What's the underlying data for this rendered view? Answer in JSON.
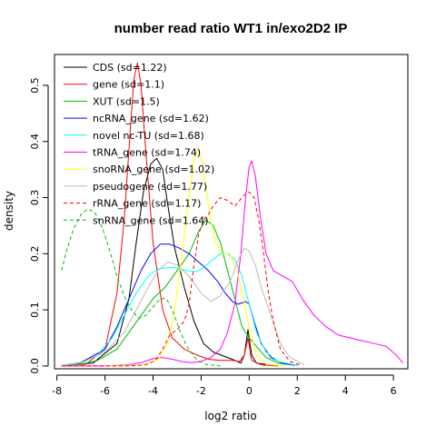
{
  "chart_data": {
    "type": "line",
    "title": "number read ratio WT1 in/exo2D2 IP",
    "xlabel": "log2 ratio",
    "ylabel": "density",
    "xlim": [
      -8.1,
      6.6
    ],
    "ylim": [
      -0.005,
      0.555
    ],
    "xticks": [
      -8,
      -6,
      -4,
      -2,
      0,
      2,
      4,
      6
    ],
    "yticks": [
      0.0,
      0.1,
      0.2,
      0.3,
      0.4,
      0.5
    ],
    "grid": false,
    "legend_position": "top-left",
    "series": [
      {
        "name": "CDS (sd=1.22)",
        "color": "#000000",
        "dash": "solid",
        "points": [
          [
            -7.8,
            0.001
          ],
          [
            -6.5,
            0.005
          ],
          [
            -5.5,
            0.04
          ],
          [
            -5.0,
            0.12
          ],
          [
            -4.7,
            0.22
          ],
          [
            -4.4,
            0.31
          ],
          [
            -4.1,
            0.36
          ],
          [
            -3.85,
            0.37
          ],
          [
            -3.6,
            0.35
          ],
          [
            -3.4,
            0.29
          ],
          [
            -3.1,
            0.21
          ],
          [
            -2.7,
            0.14
          ],
          [
            -2.3,
            0.08
          ],
          [
            -1.9,
            0.04
          ],
          [
            -1.5,
            0.025
          ],
          [
            -1.2,
            0.02
          ],
          [
            -0.9,
            0.015
          ],
          [
            -0.6,
            0.01
          ],
          [
            -0.35,
            0.005
          ],
          [
            -0.2,
            0.02
          ],
          [
            -0.05,
            0.065
          ],
          [
            0.1,
            0.02
          ],
          [
            0.3,
            0.005
          ],
          [
            1.0,
            0.001
          ]
        ]
      },
      {
        "name": "gene (sd=1.1)",
        "color": "#ff0000",
        "dash": "solid",
        "points": [
          [
            -7.8,
            0.001
          ],
          [
            -6.8,
            0.003
          ],
          [
            -6.0,
            0.03
          ],
          [
            -5.5,
            0.13
          ],
          [
            -5.2,
            0.26
          ],
          [
            -4.95,
            0.42
          ],
          [
            -4.8,
            0.51
          ],
          [
            -4.65,
            0.54
          ],
          [
            -4.5,
            0.5
          ],
          [
            -4.3,
            0.38
          ],
          [
            -4.0,
            0.22
          ],
          [
            -3.6,
            0.1
          ],
          [
            -3.2,
            0.05
          ],
          [
            -2.7,
            0.03
          ],
          [
            -2.2,
            0.02
          ],
          [
            -1.7,
            0.012
          ],
          [
            -1.2,
            0.01
          ],
          [
            -0.7,
            0.01
          ],
          [
            -0.4,
            0.008
          ],
          [
            -0.2,
            0.02
          ],
          [
            -0.05,
            0.05
          ],
          [
            0.1,
            0.01
          ],
          [
            0.5,
            0.002
          ],
          [
            1.2,
            0.0
          ]
        ]
      },
      {
        "name": "XUT (sd=1.5)",
        "color": "#00bb00",
        "dash": "solid",
        "points": [
          [
            -7.8,
            0.001
          ],
          [
            -7.0,
            0.003
          ],
          [
            -6.3,
            0.01
          ],
          [
            -5.5,
            0.03
          ],
          [
            -5.0,
            0.06
          ],
          [
            -4.5,
            0.09
          ],
          [
            -4.0,
            0.12
          ],
          [
            -3.5,
            0.14
          ],
          [
            -3.0,
            0.17
          ],
          [
            -2.5,
            0.2
          ],
          [
            -2.1,
            0.24
          ],
          [
            -1.8,
            0.26
          ],
          [
            -1.5,
            0.25
          ],
          [
            -1.2,
            0.22
          ],
          [
            -0.9,
            0.17
          ],
          [
            -0.6,
            0.12
          ],
          [
            -0.3,
            0.07
          ],
          [
            0.0,
            0.05
          ],
          [
            0.3,
            0.035
          ],
          [
            0.7,
            0.015
          ],
          [
            1.2,
            0.005
          ],
          [
            2.0,
            0.001
          ]
        ]
      },
      {
        "name": "ncRNA_gene (sd=1.62)",
        "color": "#0000ff",
        "dash": "solid",
        "points": [
          [
            -7.8,
            0.001
          ],
          [
            -7.0,
            0.006
          ],
          [
            -6.0,
            0.03
          ],
          [
            -5.5,
            0.07
          ],
          [
            -5.0,
            0.12
          ],
          [
            -4.5,
            0.17
          ],
          [
            -4.1,
            0.2
          ],
          [
            -3.7,
            0.217
          ],
          [
            -3.3,
            0.217
          ],
          [
            -2.9,
            0.21
          ],
          [
            -2.5,
            0.2
          ],
          [
            -2.1,
            0.185
          ],
          [
            -1.7,
            0.17
          ],
          [
            -1.3,
            0.15
          ],
          [
            -1.0,
            0.13
          ],
          [
            -0.7,
            0.115
          ],
          [
            -0.45,
            0.11
          ],
          [
            -0.15,
            0.115
          ],
          [
            0.0,
            0.11
          ],
          [
            0.2,
            0.08
          ],
          [
            0.5,
            0.04
          ],
          [
            0.9,
            0.015
          ],
          [
            1.4,
            0.004
          ],
          [
            2.0,
            0.001
          ]
        ]
      },
      {
        "name": "novel nc-TU (sd=1.68)",
        "color": "#00ffff",
        "dash": "solid",
        "points": [
          [
            -7.8,
            0.001
          ],
          [
            -7.0,
            0.005
          ],
          [
            -6.3,
            0.02
          ],
          [
            -5.7,
            0.05
          ],
          [
            -5.2,
            0.09
          ],
          [
            -4.7,
            0.13
          ],
          [
            -4.2,
            0.16
          ],
          [
            -3.8,
            0.173
          ],
          [
            -3.4,
            0.175
          ],
          [
            -3.0,
            0.175
          ],
          [
            -2.6,
            0.17
          ],
          [
            -2.2,
            0.168
          ],
          [
            -1.9,
            0.175
          ],
          [
            -1.5,
            0.19
          ],
          [
            -1.2,
            0.2
          ],
          [
            -0.9,
            0.2
          ],
          [
            -0.6,
            0.19
          ],
          [
            -0.3,
            0.16
          ],
          [
            0.0,
            0.11
          ],
          [
            0.3,
            0.06
          ],
          [
            0.7,
            0.025
          ],
          [
            1.2,
            0.008
          ],
          [
            2.0,
            0.001
          ]
        ]
      },
      {
        "name": "tRNA_gene (sd=1.74)",
        "color": "#ff00ff",
        "dash": "solid",
        "points": [
          [
            -7.8,
            0.0
          ],
          [
            -6.0,
            0.0
          ],
          [
            -5.0,
            0.002
          ],
          [
            -4.5,
            0.006
          ],
          [
            -4.0,
            0.013
          ],
          [
            -3.6,
            0.015
          ],
          [
            -3.2,
            0.012
          ],
          [
            -2.8,
            0.008
          ],
          [
            -2.4,
            0.006
          ],
          [
            -2.0,
            0.008
          ],
          [
            -1.6,
            0.015
          ],
          [
            -1.2,
            0.03
          ],
          [
            -0.9,
            0.06
          ],
          [
            -0.6,
            0.11
          ],
          [
            -0.35,
            0.2
          ],
          [
            -0.15,
            0.3
          ],
          [
            0.0,
            0.355
          ],
          [
            0.1,
            0.365
          ],
          [
            0.25,
            0.34
          ],
          [
            0.45,
            0.27
          ],
          [
            0.7,
            0.2
          ],
          [
            1.0,
            0.17
          ],
          [
            1.4,
            0.16
          ],
          [
            1.8,
            0.15
          ],
          [
            2.2,
            0.12
          ],
          [
            2.7,
            0.09
          ],
          [
            3.2,
            0.07
          ],
          [
            3.7,
            0.055
          ],
          [
            4.2,
            0.05
          ],
          [
            4.7,
            0.045
          ],
          [
            5.2,
            0.04
          ],
          [
            5.7,
            0.035
          ],
          [
            6.1,
            0.02
          ],
          [
            6.4,
            0.005
          ]
        ]
      },
      {
        "name": "snoRNA_gene (sd=1.02)",
        "color": "#ffff00",
        "dash": "solid",
        "points": [
          [
            -6.0,
            0.0
          ],
          [
            -4.5,
            0.001
          ],
          [
            -3.8,
            0.01
          ],
          [
            -3.4,
            0.04
          ],
          [
            -3.1,
            0.1
          ],
          [
            -2.8,
            0.2
          ],
          [
            -2.5,
            0.3
          ],
          [
            -2.3,
            0.37
          ],
          [
            -2.15,
            0.385
          ],
          [
            -2.0,
            0.37
          ],
          [
            -1.8,
            0.32
          ],
          [
            -1.6,
            0.26
          ],
          [
            -1.4,
            0.22
          ],
          [
            -1.1,
            0.2
          ],
          [
            -0.8,
            0.2
          ],
          [
            -0.5,
            0.17
          ],
          [
            -0.25,
            0.12
          ],
          [
            0.0,
            0.07
          ],
          [
            0.3,
            0.02
          ],
          [
            0.7,
            0.003
          ],
          [
            1.5,
            0.0
          ]
        ]
      },
      {
        "name": "pseudogene (sd=1.77)",
        "color": "#bbbbbb",
        "dash": "solid",
        "points": [
          [
            -7.8,
            0.001
          ],
          [
            -7.0,
            0.005
          ],
          [
            -6.0,
            0.025
          ],
          [
            -5.2,
            0.06
          ],
          [
            -4.7,
            0.1
          ],
          [
            -4.2,
            0.14
          ],
          [
            -3.8,
            0.17
          ],
          [
            -3.4,
            0.185
          ],
          [
            -3.0,
            0.18
          ],
          [
            -2.5,
            0.16
          ],
          [
            -2.0,
            0.13
          ],
          [
            -1.6,
            0.115
          ],
          [
            -1.2,
            0.125
          ],
          [
            -0.8,
            0.15
          ],
          [
            -0.45,
            0.19
          ],
          [
            -0.2,
            0.21
          ],
          [
            0.0,
            0.205
          ],
          [
            0.25,
            0.18
          ],
          [
            0.5,
            0.14
          ],
          [
            0.9,
            0.09
          ],
          [
            1.3,
            0.04
          ],
          [
            1.7,
            0.015
          ],
          [
            2.3,
            0.002
          ]
        ]
      },
      {
        "name": "rRNA_gene (sd=1.17)",
        "color": "#ff0000",
        "dash": "dashed",
        "points": [
          [
            -7.8,
            0.0
          ],
          [
            -5.0,
            0.0
          ],
          [
            -4.3,
            0.002
          ],
          [
            -3.9,
            0.01
          ],
          [
            -3.6,
            0.03
          ],
          [
            -3.3,
            0.055
          ],
          [
            -3.0,
            0.065
          ],
          [
            -2.7,
            0.08
          ],
          [
            -2.5,
            0.11
          ],
          [
            -2.3,
            0.18
          ],
          [
            -2.1,
            0.235
          ],
          [
            -1.9,
            0.26
          ],
          [
            -1.7,
            0.27
          ],
          [
            -1.5,
            0.285
          ],
          [
            -1.2,
            0.3
          ],
          [
            -0.9,
            0.295
          ],
          [
            -0.6,
            0.285
          ],
          [
            -0.4,
            0.295
          ],
          [
            -0.2,
            0.305
          ],
          [
            0.0,
            0.31
          ],
          [
            0.2,
            0.3
          ],
          [
            0.4,
            0.26
          ],
          [
            0.6,
            0.2
          ],
          [
            0.8,
            0.13
          ],
          [
            1.0,
            0.08
          ],
          [
            1.3,
            0.03
          ],
          [
            1.7,
            0.008
          ],
          [
            2.2,
            0.001
          ]
        ]
      },
      {
        "name": "snRNA_gene (sd=1.64)",
        "color": "#00bb00",
        "dash": "dashed",
        "points": [
          [
            -7.8,
            0.17
          ],
          [
            -7.6,
            0.205
          ],
          [
            -7.3,
            0.245
          ],
          [
            -7.0,
            0.27
          ],
          [
            -6.7,
            0.28
          ],
          [
            -6.4,
            0.272
          ],
          [
            -6.1,
            0.245
          ],
          [
            -5.8,
            0.205
          ],
          [
            -5.5,
            0.16
          ],
          [
            -5.2,
            0.125
          ],
          [
            -4.9,
            0.1
          ],
          [
            -4.6,
            0.085
          ],
          [
            -4.3,
            0.09
          ],
          [
            -4.0,
            0.105
          ],
          [
            -3.7,
            0.12
          ],
          [
            -3.45,
            0.12
          ],
          [
            -3.2,
            0.1
          ],
          [
            -2.9,
            0.065
          ],
          [
            -2.6,
            0.035
          ],
          [
            -2.2,
            0.012
          ],
          [
            -1.8,
            0.003
          ],
          [
            -1.2,
            0.0
          ]
        ]
      }
    ]
  }
}
